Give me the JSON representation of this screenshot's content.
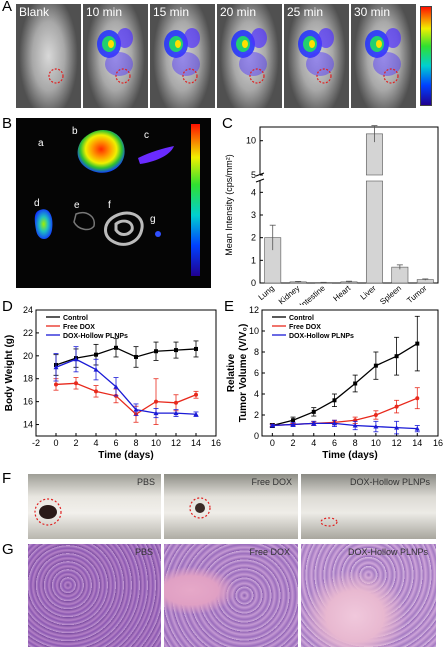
{
  "panels": {
    "A": {
      "label": "A",
      "frames": [
        "Blank",
        "10 min",
        "15 min",
        "20 min",
        "25 min",
        "30 min"
      ]
    },
    "B": {
      "label": "B",
      "organs": [
        "a",
        "b",
        "c",
        "d",
        "e",
        "f",
        "g"
      ]
    },
    "C": {
      "label": "C",
      "ylabel": "Mean Intensity (cps/mm²)",
      "yticks_low": [
        "0",
        "1",
        "2",
        "3",
        "4"
      ],
      "yticks_high": [
        "5",
        "10"
      ]
    },
    "D": {
      "label": "D",
      "xlabel": "Time (days)",
      "ylabel": "Body Weight (g)",
      "xticks": [
        "-2",
        "0",
        "2",
        "4",
        "6",
        "8",
        "10",
        "12",
        "14",
        "16"
      ],
      "yticks": [
        "14",
        "16",
        "18",
        "20",
        "22",
        "24"
      ]
    },
    "E": {
      "label": "E",
      "xlabel": "Time (days)",
      "ylabel_line1": "Relative",
      "ylabel_line2": "Tumor Volume (V/V₀)",
      "xticks": [
        "0",
        "2",
        "4",
        "6",
        "8",
        "10",
        "12",
        "14",
        "16"
      ],
      "yticks": [
        "0",
        "2",
        "4",
        "6",
        "8",
        "10",
        "12"
      ]
    },
    "F": {
      "label": "F",
      "photos": [
        "PBS",
        "Free DOX",
        "DOX-Hollow PLNPs"
      ]
    },
    "G": {
      "label": "G",
      "photos": [
        "PBS",
        "Free DOX",
        "DOX-Hollow PLNPs"
      ]
    }
  },
  "colors": {
    "control": "#000000",
    "free_dox": "#e8291c",
    "dox_hollow": "#1a1ad6",
    "bar_fill": "#d4d4d4"
  },
  "chart_data": [
    {
      "type": "bar",
      "panel": "C",
      "categories": [
        "Lung",
        "Kidney",
        "Intestine",
        "Heart",
        "Liver",
        "Spleen",
        "Tumor"
      ],
      "values": [
        2.0,
        0.05,
        0.02,
        0.05,
        11.0,
        0.7,
        0.15
      ],
      "errors": [
        0.55,
        0.02,
        0.01,
        0.03,
        1.2,
        0.1,
        0.03
      ],
      "ylabel": "Mean Intensity (cps/mm²)",
      "axis_break": [
        4.5,
        5
      ]
    },
    {
      "type": "line",
      "panel": "D",
      "x": [
        0,
        2,
        4,
        6,
        8,
        10,
        12,
        14
      ],
      "series": [
        {
          "name": "Control",
          "values": [
            19.2,
            19.8,
            20.1,
            20.7,
            19.9,
            20.4,
            20.5,
            20.6
          ],
          "errors": [
            0.9,
            0.8,
            0.9,
            0.8,
            0.9,
            0.8,
            0.7,
            0.7
          ]
        },
        {
          "name": "Free DOX",
          "values": [
            17.5,
            17.6,
            16.9,
            16.5,
            14.9,
            16.0,
            15.9,
            16.6
          ],
          "errors": [
            0.5,
            0.5,
            0.5,
            0.6,
            0.7,
            2.0,
            0.7,
            0.3
          ]
        },
        {
          "name": "DOX-Hollow PLNPs",
          "values": [
            19.0,
            19.7,
            18.8,
            17.3,
            15.3,
            15.0,
            15.0,
            14.9
          ],
          "errors": [
            1.2,
            1.1,
            0.9,
            0.8,
            0.5,
            0.4,
            0.3,
            0.2
          ]
        }
      ],
      "xlabel": "Time (days)",
      "ylabel": "Body Weight (g)",
      "xlim": [
        -2,
        16
      ],
      "ylim": [
        13,
        24
      ]
    },
    {
      "type": "line",
      "panel": "E",
      "x": [
        0,
        2,
        4,
        6,
        8,
        10,
        12,
        14
      ],
      "series": [
        {
          "name": "Control",
          "values": [
            1.0,
            1.5,
            2.3,
            3.4,
            5.0,
            6.7,
            7.6,
            8.8
          ],
          "errors": [
            0.2,
            0.3,
            0.4,
            0.6,
            0.8,
            1.3,
            1.8,
            2.6
          ]
        },
        {
          "name": "Free DOX",
          "values": [
            1.0,
            1.1,
            1.2,
            1.3,
            1.5,
            2.0,
            2.8,
            3.6
          ],
          "errors": [
            0.1,
            0.1,
            0.2,
            0.2,
            0.3,
            0.4,
            0.6,
            1.0
          ]
        },
        {
          "name": "DOX-Hollow PLNPs",
          "values": [
            1.0,
            1.1,
            1.2,
            1.2,
            1.0,
            0.9,
            0.8,
            0.7
          ],
          "errors": [
            0.1,
            0.2,
            0.2,
            0.3,
            0.4,
            0.5,
            0.6,
            0.3
          ]
        }
      ],
      "xlabel": "Time (days)",
      "ylabel": "Relative Tumor Volume (V/V₀)",
      "xlim": [
        -1,
        16
      ],
      "ylim": [
        0,
        12
      ]
    }
  ]
}
